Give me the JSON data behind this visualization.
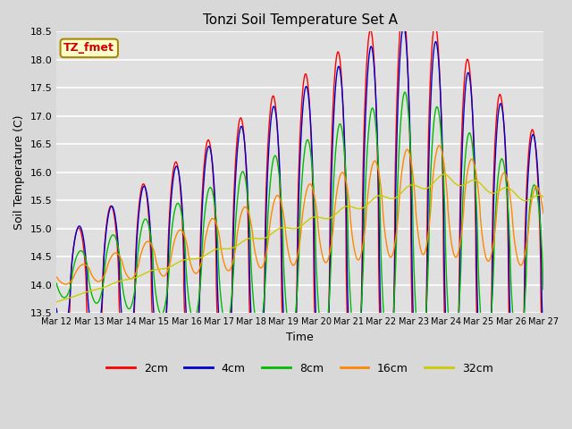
{
  "title": "Tonzi Soil Temperature Set A",
  "xlabel": "Time",
  "ylabel": "Soil Temperature (C)",
  "ylim": [
    13.5,
    18.5
  ],
  "colors": {
    "2cm": "#ff0000",
    "4cm": "#0000cc",
    "8cm": "#00bb00",
    "16cm": "#ff8800",
    "32cm": "#cccc00"
  },
  "legend_label": "TZ_fmet",
  "legend_box_color": "#ffffcc",
  "legend_box_edge": "#aa8800",
  "bg_color": "#e0e0e0",
  "grid_color": "#ffffff",
  "depths": [
    "2cm",
    "4cm",
    "8cm",
    "16cm",
    "32cm"
  ],
  "x_tick_labels": [
    "Mar 12",
    "Mar 13",
    "Mar 14",
    "Mar 15",
    "Mar 16",
    "Mar 17",
    "Mar 18",
    "Mar 19",
    "Mar 20",
    "Mar 21",
    "Mar 22",
    "Mar 23",
    "Mar 24",
    "Mar 25",
    "Mar 26",
    "Mar 27"
  ]
}
